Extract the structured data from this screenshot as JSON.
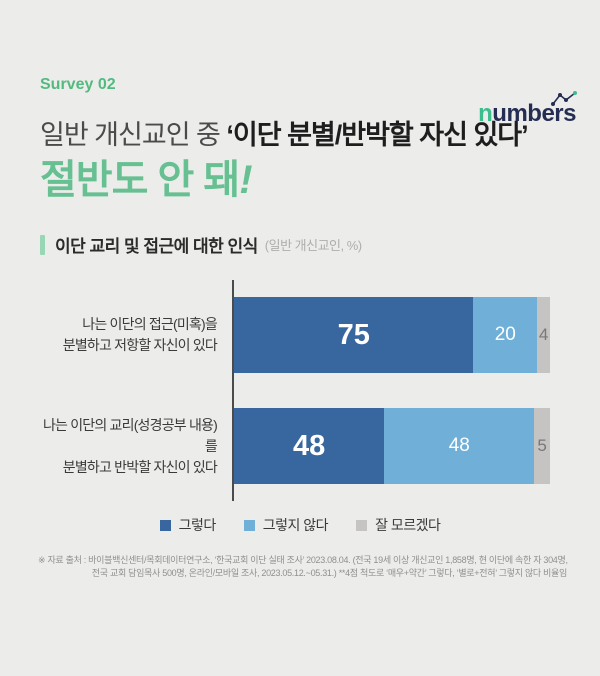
{
  "logo": {
    "prefix": "n",
    "rest": "umbers"
  },
  "survey_label": "Survey 02",
  "title": {
    "normal": "일반 개신교인 중 ",
    "emph": "‘이단 분별/반박할 자신 있다’"
  },
  "headline": {
    "text": "절반도 안 돼",
    "excl": "!"
  },
  "section": {
    "title": "이단 교리 및 접근에 대한 인식",
    "subtitle": "(일반 개신교인, %)"
  },
  "chart_data": {
    "type": "bar",
    "orientation": "horizontal",
    "stacked": true,
    "unit": "%",
    "value_range": [
      0,
      100
    ],
    "grid": false,
    "legend_position": "bottom",
    "categories": [
      "나는 이단의 접근(미혹)을\n분별하고 저항할 자신이 있다",
      "나는 이단의 교리(성경공부 내용)를\n분별하고 반박할 자신이 있다"
    ],
    "series": [
      {
        "name": "그렇다",
        "color": "#38669e",
        "value_text_color": "#ffffff",
        "values": [
          75,
          48
        ]
      },
      {
        "name": "그렇지 않다",
        "color": "#6fafd8",
        "value_text_color": "#ffffff",
        "values": [
          20,
          48
        ]
      },
      {
        "name": "잘 모르겠다",
        "color": "#c5c4c3",
        "value_text_color": "#787878",
        "values": [
          4,
          5
        ]
      }
    ]
  },
  "colors": {
    "background": "#ecedeb",
    "accent_green": "#53ba7f",
    "headline_green": "#66c091",
    "logo_navy": "#252e52",
    "logo_green": "#3cbd8e",
    "axis": "#4b4b4b"
  },
  "footer": {
    "line1": "※ 자료 출처 :  바이블백신센터/목회데이터연구소, ‘한국교회 이단 실태 조사’ 2023.08.04. (전국 19세 이상 개신교인 1,858명, 현 이단에 속한 자 304명,",
    "line2": "전국 교회 담임목사 500명, 온라인/모바일 조사, 2023.05.12.~05.31.) **4점 척도로 ‘매우+약간’ 그렇다, ‘별로+전혀’ 그렇지 않다 비율임"
  }
}
